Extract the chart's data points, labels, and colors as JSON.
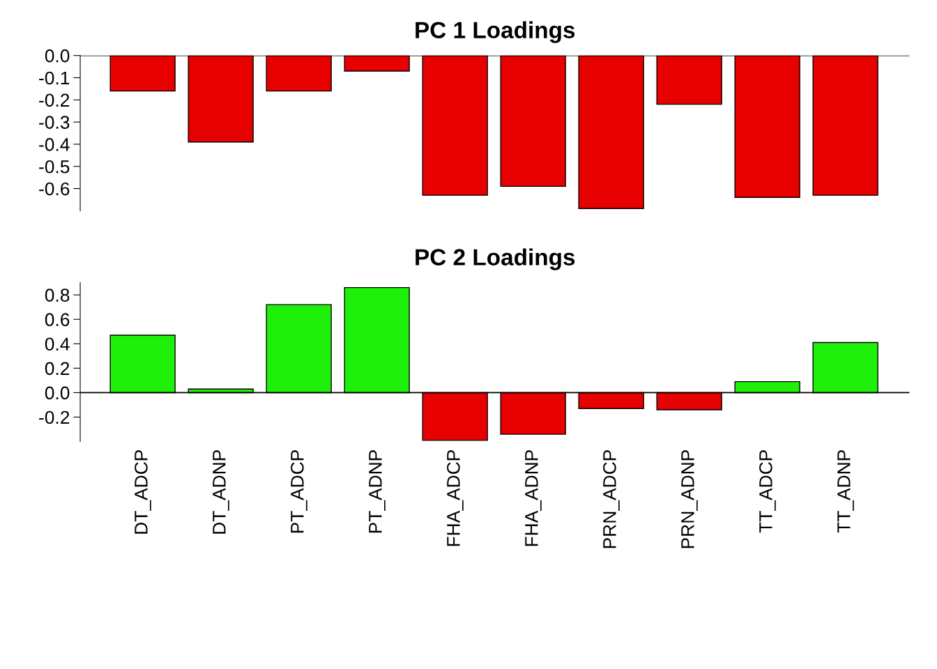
{
  "chart_data": [
    {
      "type": "bar",
      "title": "PC 1 Loadings",
      "categories": [
        null,
        null,
        null,
        null,
        null,
        null,
        null,
        null,
        null,
        null
      ],
      "values": [
        -0.16,
        -0.39,
        -0.16,
        -0.07,
        -0.63,
        -0.59,
        -0.69,
        -0.22,
        -0.64,
        -0.63
      ],
      "colors": [
        "#e60000",
        "#e60000",
        "#e60000",
        "#e60000",
        "#e60000",
        "#e60000",
        "#e60000",
        "#e60000",
        "#e60000",
        "#e60000"
      ],
      "ylim": [
        -0.7,
        0
      ],
      "yticks": [
        {
          "value": 0,
          "label": "0.0"
        },
        -0.1,
        -0.2,
        -0.3,
        -0.4,
        -0.5,
        -0.6
      ],
      "ref_lines": [
        {
          "axis": "y",
          "value": 0,
          "color": "#000000"
        }
      ],
      "tick_labels": "y",
      "grid": false
    },
    {
      "type": "bar",
      "title": "PC 2 Loadings",
      "categories": [
        "DT_ADCP",
        "DT_ADNP",
        "PT_ADCP",
        "PT_ADNP",
        "FHA_ADCP",
        "FHA_ADNP",
        "PRN_ADCP",
        "PRN_ADNP",
        "TT_ADCP",
        "TT_ADNP"
      ],
      "values": [
        0.47,
        0.03,
        0.72,
        0.86,
        -0.39,
        -0.34,
        -0.13,
        -0.14,
        0.09,
        0.41
      ],
      "colors": [
        "#1ff00a",
        "#1ff00a",
        "#1ff00a",
        "#1ff00a",
        "#e60000",
        "#e60000",
        "#e60000",
        "#e60000",
        "#1ff00a",
        "#1ff00a"
      ],
      "ylim": [
        -0.4,
        0.9
      ],
      "yticks": [
        -0.2,
        {
          "value": 0,
          "label": "0.0"
        },
        0.2,
        0.4,
        0.6,
        0.8
      ],
      "ref_lines": [
        {
          "axis": "y",
          "value": 0,
          "color": "#000000"
        }
      ],
      "grid": false
    }
  ]
}
